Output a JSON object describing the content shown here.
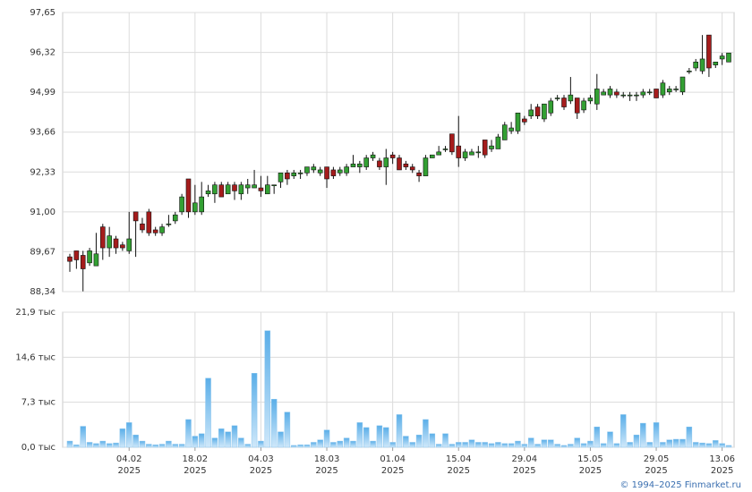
{
  "chart_data": {
    "type": "candlestick",
    "up_color": "#33a033",
    "down_color": "#a51c1c",
    "grid": true,
    "categories": [
      null,
      null,
      null,
      null,
      null,
      null,
      null,
      null,
      null,
      "04.02",
      null,
      null,
      null,
      null,
      null,
      null,
      null,
      null,
      null,
      "18.02",
      null,
      null,
      null,
      null,
      null,
      null,
      null,
      null,
      null,
      "04.03",
      null,
      null,
      null,
      null,
      null,
      null,
      null,
      null,
      null,
      "18.03",
      null,
      null,
      null,
      null,
      null,
      null,
      null,
      null,
      null,
      "01.04",
      null,
      null,
      null,
      null,
      null,
      null,
      null,
      null,
      null,
      "15.04",
      null,
      null,
      null,
      null,
      null,
      null,
      null,
      null,
      null,
      "29.04",
      null,
      null,
      null,
      null,
      null,
      null,
      null,
      null,
      null,
      "15.05",
      null,
      null,
      null,
      null,
      null,
      null,
      null,
      null,
      null,
      "29.05",
      null,
      null,
      null,
      null,
      null,
      null,
      null,
      null,
      null,
      "13.06",
      null
    ],
    "category_years": [
      null,
      null,
      null,
      null,
      null,
      null,
      null,
      null,
      null,
      "2025",
      null,
      null,
      null,
      null,
      null,
      null,
      null,
      null,
      null,
      "2025",
      null,
      null,
      null,
      null,
      null,
      null,
      null,
      null,
      null,
      "2025",
      null,
      null,
      null,
      null,
      null,
      null,
      null,
      null,
      null,
      "2025",
      null,
      null,
      null,
      null,
      null,
      null,
      null,
      null,
      null,
      "2025",
      null,
      null,
      null,
      null,
      null,
      null,
      null,
      null,
      null,
      "2025",
      null,
      null,
      null,
      null,
      null,
      null,
      null,
      null,
      null,
      "2025",
      null,
      null,
      null,
      null,
      null,
      null,
      null,
      null,
      null,
      "2025",
      null,
      null,
      null,
      null,
      null,
      null,
      null,
      null,
      null,
      "2025",
      null,
      null,
      null,
      null,
      null,
      null,
      null,
      null,
      null,
      "2025",
      null
    ],
    "open": [
      89.5,
      89.7,
      89.55,
      89.3,
      89.2,
      90.5,
      89.8,
      90.1,
      89.9,
      89.7,
      91.0,
      90.6,
      91.0,
      90.4,
      90.3,
      90.6,
      90.7,
      91.0,
      92.1,
      91.0,
      91.0,
      91.6,
      91.6,
      91.9,
      91.6,
      91.9,
      91.6,
      91.8,
      91.8,
      91.8,
      91.6,
      91.9,
      92.0,
      92.3,
      92.2,
      92.3,
      92.3,
      92.4,
      92.3,
      92.5,
      92.4,
      92.3,
      92.3,
      92.5,
      92.5,
      92.5,
      92.8,
      92.7,
      92.5,
      92.9,
      92.8,
      92.6,
      92.5,
      92.3,
      92.2,
      92.8,
      92.9,
      93.1,
      93.6,
      93.2,
      92.8,
      92.9,
      93.0,
      93.4,
      93.1,
      93.1,
      93.4,
      93.7,
      93.7,
      94.1,
      94.2,
      94.5,
      94.1,
      94.3,
      94.8,
      94.8,
      94.7,
      94.8,
      94.4,
      94.7,
      94.6,
      94.9,
      94.9,
      95.0,
      94.9,
      94.9,
      94.9,
      94.9,
      95.0,
      95.1,
      94.9,
      95.0,
      95.1,
      95.0,
      95.7,
      95.8,
      95.7,
      96.9,
      95.9,
      96.1,
      96.0
    ],
    "high": [
      89.6,
      89.7,
      89.7,
      89.8,
      90.3,
      90.6,
      90.5,
      90.2,
      90.0,
      91.0,
      91.0,
      90.8,
      91.1,
      90.5,
      90.6,
      90.9,
      91.0,
      91.6,
      92.1,
      91.9,
      92.0,
      91.9,
      92.0,
      92.0,
      92.0,
      92.0,
      92.0,
      92.1,
      92.4,
      92.2,
      92.2,
      91.9,
      92.3,
      92.4,
      92.4,
      92.4,
      92.5,
      92.6,
      92.5,
      92.5,
      92.5,
      92.5,
      92.6,
      92.9,
      92.7,
      92.9,
      93.0,
      92.8,
      93.1,
      93.0,
      92.9,
      92.7,
      92.6,
      92.4,
      92.9,
      92.9,
      93.2,
      93.2,
      93.6,
      94.2,
      93.1,
      93.1,
      93.2,
      93.4,
      93.4,
      93.6,
      94.0,
      94.0,
      94.3,
      94.2,
      94.6,
      94.6,
      94.6,
      94.8,
      94.9,
      94.9,
      95.5,
      94.8,
      94.8,
      94.9,
      95.6,
      95.1,
      95.2,
      95.1,
      95.0,
      95.0,
      95.0,
      95.1,
      95.1,
      95.1,
      95.4,
      95.2,
      95.2,
      95.5,
      95.8,
      96.1,
      96.9,
      96.9,
      96.0,
      96.3,
      96.3
    ],
    "low": [
      89.0,
      89.1,
      88.35,
      89.2,
      89.2,
      89.4,
      89.5,
      89.6,
      89.7,
      89.6,
      89.5,
      90.3,
      90.2,
      90.2,
      90.2,
      90.5,
      90.6,
      90.9,
      90.8,
      90.9,
      90.9,
      91.5,
      91.3,
      91.5,
      91.6,
      91.4,
      91.4,
      91.6,
      91.8,
      91.5,
      91.6,
      91.6,
      91.8,
      91.9,
      92.1,
      92.1,
      92.2,
      92.3,
      92.2,
      91.8,
      92.1,
      92.2,
      92.2,
      92.5,
      92.3,
      92.4,
      92.7,
      92.4,
      91.9,
      92.6,
      92.4,
      92.4,
      92.3,
      92.0,
      92.2,
      92.8,
      92.9,
      93.0,
      92.9,
      92.5,
      92.7,
      92.9,
      92.8,
      92.8,
      93.0,
      93.1,
      93.4,
      93.6,
      93.6,
      93.9,
      94.1,
      94.1,
      94.0,
      94.2,
      94.7,
      94.4,
      94.6,
      94.1,
      94.3,
      94.6,
      94.4,
      94.9,
      94.8,
      94.8,
      94.8,
      94.7,
      94.7,
      94.8,
      94.9,
      94.8,
      94.8,
      94.9,
      95.0,
      94.9,
      95.6,
      95.7,
      95.6,
      95.5,
      95.8,
      95.9,
      96.0
    ],
    "close": [
      89.35,
      89.4,
      89.1,
      89.7,
      89.6,
      89.8,
      90.2,
      89.8,
      89.8,
      90.1,
      90.7,
      90.4,
      90.3,
      90.3,
      90.5,
      90.6,
      90.9,
      91.5,
      91.0,
      91.3,
      91.5,
      91.7,
      91.9,
      91.5,
      91.9,
      91.7,
      91.9,
      91.9,
      91.9,
      91.7,
      91.9,
      91.9,
      92.3,
      92.1,
      92.3,
      92.3,
      92.5,
      92.5,
      92.4,
      92.1,
      92.2,
      92.4,
      92.5,
      92.6,
      92.6,
      92.8,
      92.9,
      92.5,
      92.8,
      92.8,
      92.4,
      92.5,
      92.4,
      92.2,
      92.8,
      92.9,
      93.0,
      93.1,
      93.0,
      92.8,
      93.0,
      93.0,
      93.0,
      92.9,
      93.2,
      93.5,
      93.9,
      93.8,
      94.3,
      94.0,
      94.4,
      94.2,
      94.6,
      94.7,
      94.8,
      94.5,
      94.9,
      94.3,
      94.7,
      94.8,
      95.1,
      95.0,
      95.1,
      94.9,
      94.9,
      94.9,
      94.9,
      95.0,
      95.0,
      94.8,
      95.3,
      95.1,
      95.1,
      95.5,
      95.7,
      96.0,
      96.1,
      95.8,
      96.0,
      96.2,
      96.3
    ],
    "ylim": [
      88.34,
      97.65
    ],
    "yticks": [
      {
        "value": 88.34,
        "label": "88,34"
      },
      {
        "value": 89.67,
        "label": "89,67"
      },
      {
        "value": 91.0,
        "label": "91,00"
      },
      {
        "value": 92.33,
        "label": "92,33"
      },
      {
        "value": 93.66,
        "label": "93,66"
      },
      {
        "value": 94.99,
        "label": "94,99"
      },
      {
        "value": 96.32,
        "label": "96,32"
      },
      {
        "value": 97.65,
        "label": "97,65"
      }
    ],
    "volume": {
      "color": "#8cc6ee",
      "values": [
        1.0,
        0.4,
        3.4,
        0.8,
        0.6,
        1.0,
        0.6,
        0.7,
        3.0,
        4.0,
        2.0,
        1.0,
        0.5,
        0.4,
        0.5,
        1.0,
        0.5,
        0.5,
        4.5,
        1.8,
        2.2,
        11.2,
        1.5,
        3.0,
        2.5,
        3.5,
        1.5,
        0.5,
        12.0,
        1.0,
        18.9,
        7.8,
        2.5,
        5.7,
        0.3,
        0.4,
        0.4,
        0.8,
        1.2,
        2.8,
        0.8,
        1.0,
        1.5,
        1.0,
        4.0,
        3.2,
        1.0,
        3.5,
        3.2,
        0.8,
        5.3,
        1.8,
        0.8,
        2.0,
        4.5,
        2.2,
        0.5,
        2.2,
        0.5,
        0.8,
        0.8,
        1.2,
        0.8,
        0.8,
        0.6,
        0.8,
        0.6,
        0.6,
        1.0,
        0.5,
        1.5,
        0.5,
        1.2,
        1.2,
        0.5,
        0.3,
        0.5,
        1.5,
        0.6,
        1.0,
        3.3,
        0.6,
        2.5,
        0.6,
        5.3,
        0.8,
        2.0,
        3.9,
        0.8,
        4.0,
        0.8,
        1.2,
        1.3,
        1.3,
        3.3,
        0.8,
        0.7,
        0.6,
        1.1,
        0.6,
        0.3
      ],
      "ylim": [
        0,
        21.9
      ],
      "yticks": [
        {
          "value": 0,
          "label": "0,0 тыс"
        },
        {
          "value": 7.3,
          "label": "7,3 тыс"
        },
        {
          "value": 14.6,
          "label": "14,6 тыс"
        },
        {
          "value": 21.9,
          "label": "21,9 тыс"
        }
      ]
    },
    "copyright": "© 1994–2025 Finmarket.ru"
  }
}
